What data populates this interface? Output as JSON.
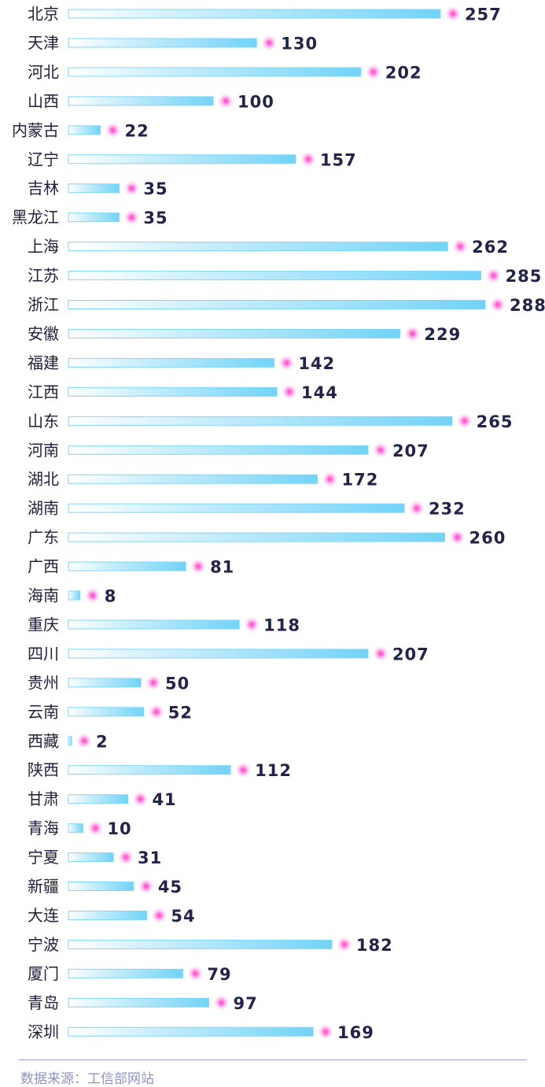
{
  "chart_data": {
    "type": "bar",
    "orientation": "horizontal",
    "categories": [
      "北京",
      "天津",
      "河北",
      "山西",
      "内蒙古",
      "辽宁",
      "吉林",
      "黑龙江",
      "上海",
      "江苏",
      "浙江",
      "安徽",
      "福建",
      "江西",
      "山东",
      "河南",
      "湖北",
      "湖南",
      "广东",
      "广西",
      "海南",
      "重庆",
      "四川",
      "贵州",
      "云南",
      "西藏",
      "陕西",
      "甘肃",
      "青海",
      "宁夏",
      "新疆",
      "大连",
      "宁波",
      "厦门",
      "青岛",
      "深圳"
    ],
    "values": [
      257,
      130,
      202,
      100,
      22,
      157,
      35,
      35,
      262,
      285,
      288,
      229,
      142,
      144,
      265,
      207,
      172,
      232,
      260,
      81,
      8,
      118,
      207,
      50,
      52,
      2,
      112,
      41,
      10,
      31,
      45,
      54,
      182,
      79,
      97,
      169
    ],
    "xlim": [
      0,
      288
    ],
    "bar_color": "#7fd6f7",
    "marker_color": "#ff5fd0",
    "grid": false
  },
  "footer": {
    "source": "数据来源：工信部网站"
  }
}
